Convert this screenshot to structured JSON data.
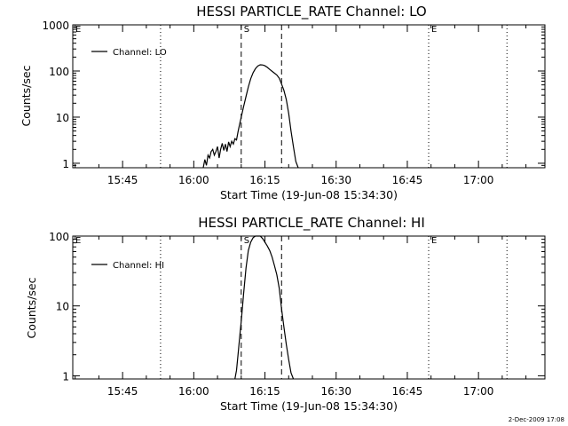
{
  "footer": {
    "timestamp": "2-Dec-2009 17:08"
  },
  "colors": {
    "line": "#000000",
    "background": "#ffffff"
  },
  "chart_data": [
    {
      "type": "line",
      "title": "HESSI PARTICLE_RATE Channel: LO",
      "xlabel": "Start Time (19-Jun-08 15:34:30)",
      "ylabel": "Counts/sec",
      "y_scale": "log",
      "xlim": [
        "15:34:30",
        "17:14:00"
      ],
      "ylim": [
        0.8,
        1000
      ],
      "x_ticks": [
        "15:45",
        "16:00",
        "16:15",
        "16:30",
        "16:45",
        "17:00"
      ],
      "y_ticks": [
        "1",
        "10",
        "100",
        "1000"
      ],
      "legend": {
        "position": "top-left",
        "entries": [
          "Channel: LO"
        ]
      },
      "markers": [
        {
          "label": "E",
          "time": "15:34:30",
          "style": "dotted"
        },
        {
          "label": "",
          "time": "15:53:00",
          "style": "dotted"
        },
        {
          "label": "S",
          "time": "16:10:00",
          "style": "dashed"
        },
        {
          "label": "",
          "time": "16:18:30",
          "style": "dashed"
        },
        {
          "label": "E",
          "time": "16:49:30",
          "style": "dotted"
        },
        {
          "label": "",
          "time": "17:06:00",
          "style": "dotted"
        }
      ],
      "series": [
        {
          "name": "Channel: LO",
          "x": [
            "16:02:00",
            "16:02:20",
            "16:02:40",
            "16:03:00",
            "16:03:20",
            "16:03:40",
            "16:04:00",
            "16:04:20",
            "16:04:40",
            "16:05:00",
            "16:05:20",
            "16:05:40",
            "16:06:00",
            "16:06:20",
            "16:06:40",
            "16:07:00",
            "16:07:20",
            "16:07:40",
            "16:08:00",
            "16:08:20",
            "16:08:40",
            "16:09:00",
            "16:09:20",
            "16:09:40",
            "16:10:00",
            "16:10:30",
            "16:11:00",
            "16:11:30",
            "16:12:00",
            "16:12:30",
            "16:13:00",
            "16:13:30",
            "16:14:00",
            "16:14:30",
            "16:15:00",
            "16:15:30",
            "16:16:00",
            "16:16:30",
            "16:17:00",
            "16:17:30",
            "16:18:00",
            "16:18:30",
            "16:19:00",
            "16:19:30",
            "16:20:00",
            "16:20:30",
            "16:21:00",
            "16:21:30",
            "16:22:00"
          ],
          "values": [
            0.8,
            1.2,
            0.9,
            1.5,
            1.3,
            1.8,
            2.0,
            1.5,
            1.8,
            2.3,
            1.3,
            2.0,
            2.7,
            1.9,
            2.6,
            1.8,
            2.9,
            2.3,
            3.0,
            2.6,
            3.4,
            3.2,
            4.8,
            7.0,
            10,
            17,
            28,
            45,
            68,
            92,
            112,
            128,
            136,
            135,
            130,
            120,
            108,
            98,
            90,
            82,
            70,
            52,
            38,
            24,
            12,
            5,
            2.3,
            1.1,
            0.7
          ]
        }
      ]
    },
    {
      "type": "line",
      "title": "HESSI PARTICLE_RATE Channel: HI",
      "xlabel": "Start Time (19-Jun-08 15:34:30)",
      "ylabel": "Counts/sec",
      "y_scale": "log",
      "xlim": [
        "15:34:30",
        "17:14:00"
      ],
      "ylim": [
        0.9,
        100
      ],
      "x_ticks": [
        "15:45",
        "16:00",
        "16:15",
        "16:30",
        "16:45",
        "17:00"
      ],
      "y_ticks": [
        "1",
        "10",
        "100"
      ],
      "legend": {
        "position": "top-left",
        "entries": [
          "Channel: HI"
        ]
      },
      "markers": [
        {
          "label": "E",
          "time": "15:34:30",
          "style": "dotted"
        },
        {
          "label": "",
          "time": "15:53:00",
          "style": "dotted"
        },
        {
          "label": "S",
          "time": "16:10:00",
          "style": "dashed"
        },
        {
          "label": "",
          "time": "16:18:30",
          "style": "dashed"
        },
        {
          "label": "E",
          "time": "16:49:30",
          "style": "dotted"
        },
        {
          "label": "",
          "time": "17:06:00",
          "style": "dotted"
        }
      ],
      "series": [
        {
          "name": "Channel: HI",
          "x": [
            "16:08:40",
            "16:09:00",
            "16:09:20",
            "16:09:40",
            "16:10:00",
            "16:10:30",
            "16:11:00",
            "16:11:30",
            "16:12:00",
            "16:12:30",
            "16:13:00",
            "16:13:30",
            "16:14:00",
            "16:14:30",
            "16:15:00",
            "16:15:30",
            "16:16:00",
            "16:16:30",
            "16:17:00",
            "16:17:30",
            "16:18:00",
            "16:18:30",
            "16:19:00",
            "16:19:30",
            "16:20:00",
            "16:20:30",
            "16:21:00"
          ],
          "values": [
            0.8,
            1.2,
            2.0,
            3.5,
            6.0,
            15,
            35,
            62,
            82,
            95,
            103,
            104,
            100,
            92,
            82,
            72,
            62,
            50,
            38,
            28,
            18,
            9,
            5,
            2.8,
            1.7,
            1.1,
            0.7
          ]
        }
      ]
    }
  ]
}
